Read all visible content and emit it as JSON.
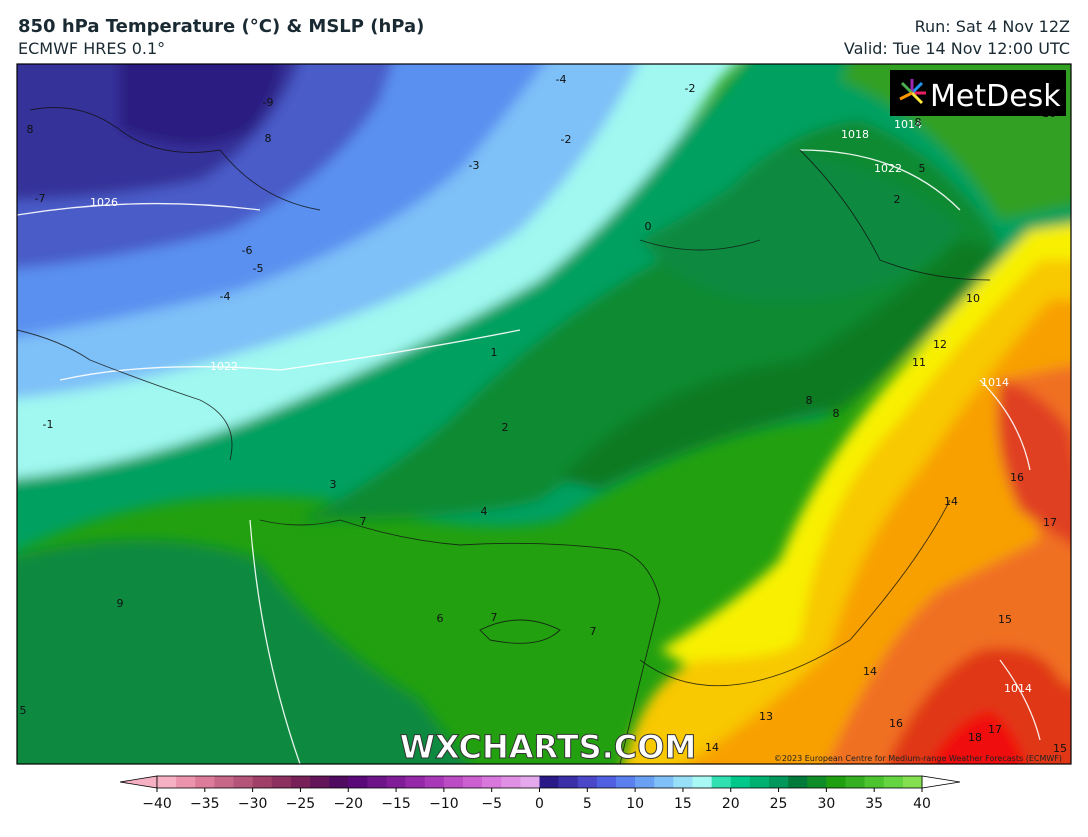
{
  "header": {
    "title": "850 hPa Temperature (°C) & MSLP (hPa)",
    "subtitle": "ECMWF HRES 0.1°",
    "run": "Run: Sat 4 Nov 12Z",
    "valid": "Valid: Tue 14 Nov 12:00 UTC"
  },
  "map": {
    "logo": "MetDesk",
    "watermark": "WXCHARTS.COM",
    "copyright": "©2023 European Centre for Medium-range Weather Forecasts (ECMWF)",
    "contour_labels": [
      "8",
      "-9",
      "8",
      "-7",
      "1026",
      "-6",
      "-5",
      "-4",
      "-4",
      "-2",
      "-2",
      "-3",
      "0",
      "1018",
      "1014",
      "8",
      "1022",
      "5",
      "2",
      "16",
      "10",
      "12",
      "11",
      "1014",
      "1022",
      "1",
      "-1",
      "2",
      "8",
      "8",
      "3",
      "4",
      "7",
      "16",
      "17",
      "14",
      "9",
      "6",
      "7",
      "7",
      "15",
      "14",
      "13",
      "1014",
      "16",
      "17",
      "18",
      "15",
      "14",
      "5"
    ]
  },
  "colorbar": {
    "ticks": [
      {
        "value": -40,
        "label": "−40"
      },
      {
        "value": -35,
        "label": "−35"
      },
      {
        "value": -30,
        "label": "−30"
      },
      {
        "value": -25,
        "label": "−25"
      },
      {
        "value": -20,
        "label": "−20"
      },
      {
        "value": -15,
        "label": "−15"
      },
      {
        "value": -10,
        "label": "−10"
      },
      {
        "value": -5,
        "label": "−5"
      },
      0,
      5,
      10,
      15,
      20,
      25,
      30,
      35,
      40
    ],
    "range": [
      -40,
      40
    ],
    "colors": [
      "#f6b0c4",
      "#ec94ae",
      "#dc7c9a",
      "#c86888",
      "#b45478",
      "#a04068",
      "#8c3060",
      "#782058",
      "#641458",
      "#500a60",
      "#5a0a78",
      "#6c1488",
      "#801c98",
      "#9428a8",
      "#a838b8",
      "#bc4cc4",
      "#cc60d0",
      "#d878dc",
      "#e090e4",
      "#e4a8ec",
      "#2a1a88",
      "#3a30a8",
      "#4a48c8",
      "#5060e0",
      "#5a80f0",
      "#6aa0f4",
      "#80c0f8",
      "#98e0f8",
      "#a8f8f4",
      "#30e0b0",
      "#00c88a",
      "#00b070",
      "#00985a",
      "#007a3a",
      "#108c28",
      "#20a010",
      "#34b020",
      "#4cc430",
      "#64d440",
      "#84e050"
    ],
    "over_color": "#ffffff",
    "under_color": "#f6b0c4"
  }
}
